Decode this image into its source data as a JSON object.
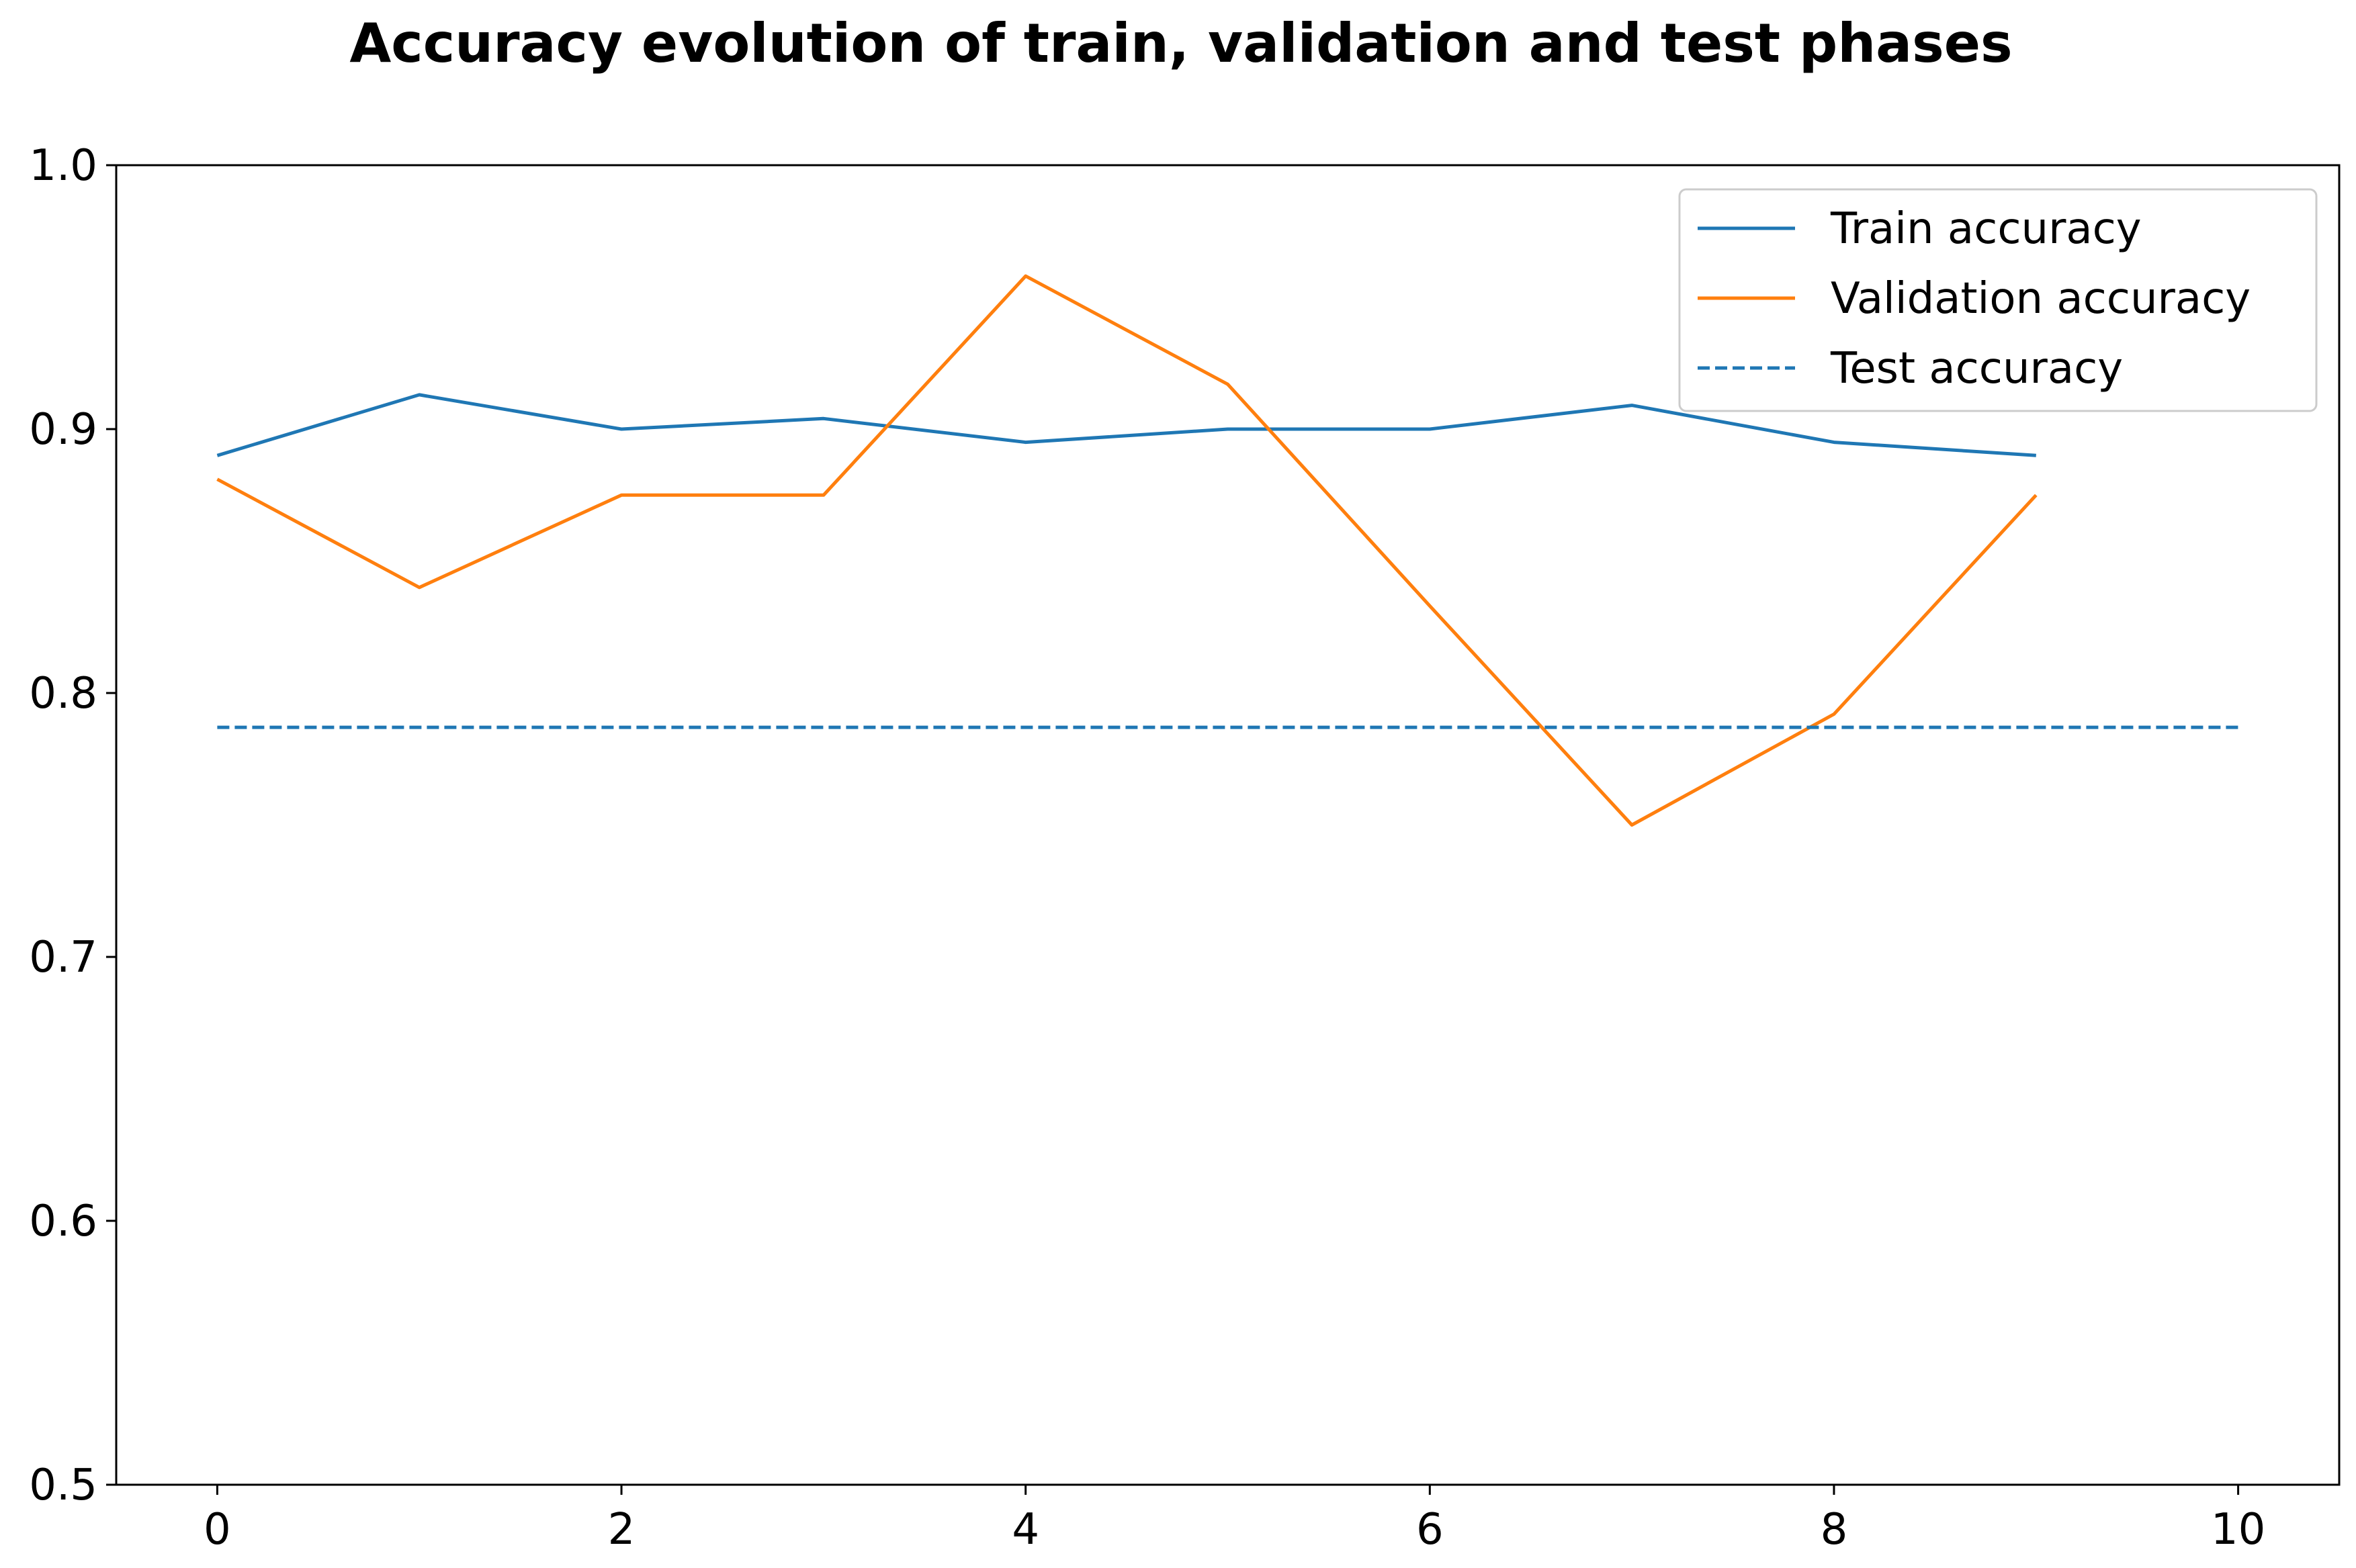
{
  "chart_data": {
    "type": "line",
    "title": "Accuracy evolution of train, validation and test phases",
    "xlabel": "",
    "ylabel": "",
    "xlim": [
      -0.5,
      10.5
    ],
    "ylim": [
      0.5,
      1.0
    ],
    "xticks": [
      0,
      2,
      4,
      6,
      8,
      10
    ],
    "xtick_labels": [
      "0",
      "2",
      "4",
      "6",
      "8",
      "10"
    ],
    "yticks": [
      0.5,
      0.6,
      0.7,
      0.8,
      0.9,
      1.0
    ],
    "ytick_labels": [
      "0.5",
      "0.6",
      "0.7",
      "0.8",
      "0.9",
      "1.0"
    ],
    "grid": false,
    "legend_position": "top-right",
    "series": [
      {
        "name": "Train accuracy",
        "color": "#1f77b4",
        "style": "solid",
        "x": [
          0,
          1,
          2,
          3,
          4,
          5,
          6,
          7,
          8,
          9
        ],
        "y": [
          0.89,
          0.913,
          0.9,
          0.904,
          0.895,
          0.9,
          0.9,
          0.909,
          0.895,
          0.89
        ]
      },
      {
        "name": "Validation accuracy",
        "color": "#ff7f0e",
        "style": "solid",
        "x": [
          0,
          1,
          2,
          3,
          4,
          5,
          6,
          7,
          8,
          9
        ],
        "y": [
          0.881,
          0.84,
          0.875,
          0.875,
          0.958,
          0.917,
          0.833,
          0.75,
          0.792,
          0.875
        ]
      },
      {
        "name": "Test accuracy",
        "color": "#1f77b4",
        "style": "dashed",
        "x": [
          0,
          10
        ],
        "y": [
          0.787,
          0.787
        ]
      }
    ]
  }
}
